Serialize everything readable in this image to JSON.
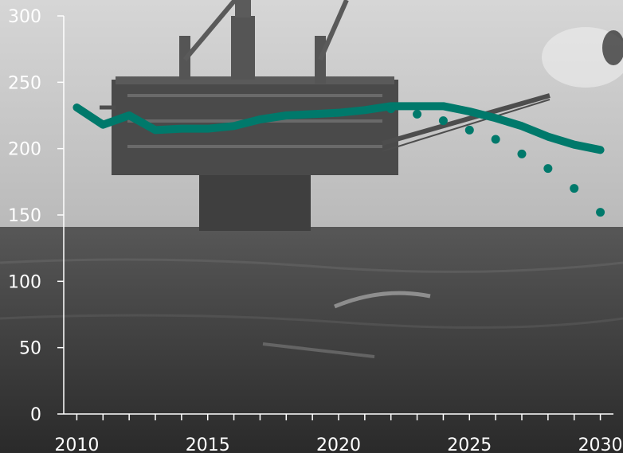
{
  "chart_data": {
    "type": "line",
    "title": "",
    "xlabel": "",
    "ylabel": "",
    "xlim": [
      2009.5,
      2030.5
    ],
    "ylim": [
      0,
      300
    ],
    "x_ticks": [
      2010,
      2015,
      2020,
      2025,
      2030
    ],
    "y_ticks": [
      0,
      50,
      100,
      150,
      200,
      250,
      300
    ],
    "grid": false,
    "legend": "none",
    "background": "grayscale photograph of an offshore oil platform at sea",
    "series": [
      {
        "style": "solid",
        "color": "#00796b",
        "x": [
          2010,
          2011,
          2012,
          2013,
          2014,
          2015,
          2016,
          2017,
          2018,
          2019,
          2020,
          2021,
          2022,
          2023,
          2024,
          2025,
          2026,
          2027,
          2028,
          2029,
          2030
        ],
        "y": [
          231,
          218,
          225,
          214,
          215,
          215,
          217,
          222,
          225,
          226,
          227,
          229,
          232,
          232,
          232,
          228,
          223,
          217,
          209,
          203,
          199
        ]
      },
      {
        "style": "dotted",
        "color": "#00796b",
        "x": [
          2022,
          2023,
          2024,
          2025,
          2026,
          2027,
          2028,
          2029,
          2030
        ],
        "y": [
          230,
          226,
          221,
          214,
          207,
          196,
          185,
          170,
          152
        ]
      }
    ]
  }
}
